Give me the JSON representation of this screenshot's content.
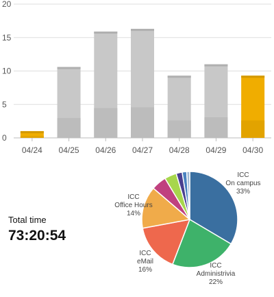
{
  "chart_data": [
    {
      "type": "bar",
      "categories": [
        "04/24",
        "04/25",
        "04/26",
        "04/27",
        "04/28",
        "04/29",
        "04/30"
      ],
      "series": [
        {
          "values": [
            1.0,
            10.6,
            15.9,
            16.3,
            9.3,
            11.0,
            9.3
          ],
          "colors": [
            "#f0ad00",
            "#c8c8c8",
            "#c8c8c8",
            "#c8c8c8",
            "#c8c8c8",
            "#c8c8c8",
            "#f0ad00"
          ]
        }
      ],
      "yticks": [
        0,
        5,
        10,
        15,
        20
      ],
      "ylim": [
        0,
        20
      ],
      "grid": true,
      "title": "",
      "xlabel": "",
      "ylabel": ""
    },
    {
      "type": "pie",
      "slices": [
        {
          "label": [
            "ICC",
            "On campus",
            "33%"
          ],
          "value": 33,
          "color": "#3a6fa0"
        },
        {
          "label": [
            "ICC",
            "Administrivia",
            "22%"
          ],
          "value": 22,
          "color": "#3eb26a"
        },
        {
          "label": [
            "ICC",
            "eMail",
            "16%"
          ],
          "value": 16,
          "color": "#ee684d"
        },
        {
          "label": [
            "ICC",
            "Office Hours",
            "14%"
          ],
          "value": 14,
          "color": "#f0ab4a"
        },
        {
          "label": [],
          "value": 5,
          "color": "#c0417f"
        },
        {
          "label": [],
          "value": 4,
          "color": "#a7d64c"
        },
        {
          "label": [],
          "value": 2,
          "color": "#4a3f8f"
        },
        {
          "label": [],
          "value": 1.5,
          "color": "#4a82c0"
        },
        {
          "label": [],
          "value": 1,
          "color": "#9fb7d4"
        }
      ]
    }
  ],
  "summary": {
    "total_label": "Total time",
    "total_value": "73:20:54"
  }
}
